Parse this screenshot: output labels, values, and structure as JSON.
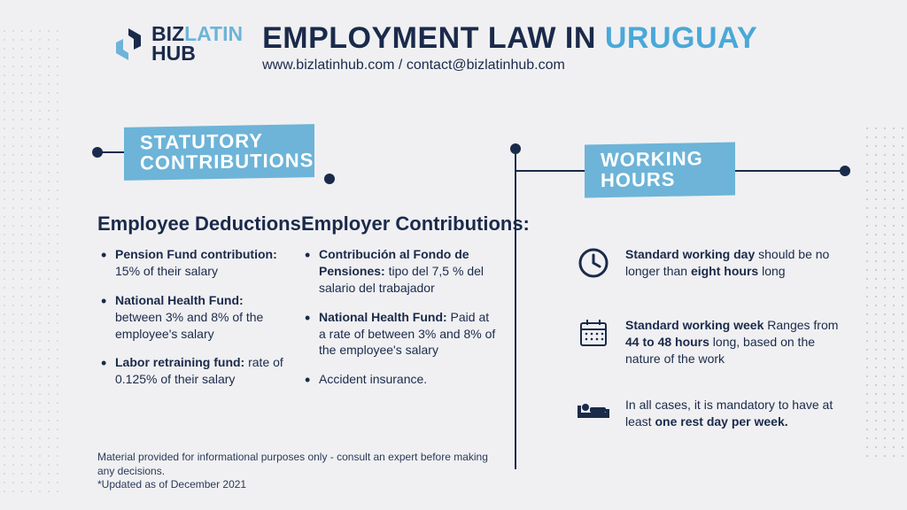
{
  "colors": {
    "primary": "#1a2a4a",
    "accent": "#6db4d8",
    "accent_bright": "#4aa8d8",
    "bg": "#f0f0f2"
  },
  "logo": {
    "biz": "BIZ",
    "latin": "LATIN",
    "hub": "HUB"
  },
  "title": {
    "prefix": "EMPLOYMENT LAW IN ",
    "highlight": "URUGUAY"
  },
  "subtitle": "www.bizlatinhub.com / contact@bizlatinhub.com",
  "banners": {
    "left_line1": "STATUTORY",
    "left_line2": "CONTRIBUTIONS",
    "right_line1": "WORKING",
    "right_line2": "HOURS"
  },
  "sections": {
    "deductions_title": "Employee Deductions:",
    "contributions_title": "Employer Contributions:",
    "deductions": [
      {
        "bold": "Pension Fund contribution:",
        "rest": " 15% of their salary"
      },
      {
        "bold": "National Health Fund:",
        "rest": " between 3% and 8% of the employee's salary"
      },
      {
        "bold": "Labor retraining fund:",
        "rest": " rate of 0.125% of their salary"
      }
    ],
    "contributions": [
      {
        "bold": "Contribución al Fondo de Pensiones:",
        "rest": " tipo del 7,5 % del salario del trabajador"
      },
      {
        "bold": "National Health Fund:",
        "rest": " Paid at a rate of between 3% and 8% of the employee's salary"
      },
      {
        "bold": "",
        "rest": "Accident insurance."
      }
    ],
    "hours": [
      {
        "pre": "",
        "bold1": "Standard working day",
        "mid": " should be no longer than ",
        "bold2": "eight hours",
        "post": " long"
      },
      {
        "pre": "",
        "bold1": "Standard working week",
        "mid": " Ranges from ",
        "bold2": "44 to 48 hours",
        "post": " long, based on the nature of the work"
      },
      {
        "pre": "In all cases, it is mandatory to have at least ",
        "bold1": "one rest day per week.",
        "mid": "",
        "bold2": "",
        "post": ""
      }
    ]
  },
  "disclaimer": {
    "line1": "Material provided for informational purposes only - consult an expert before making any decisions.",
    "line2": "*Updated as of December 2021"
  }
}
